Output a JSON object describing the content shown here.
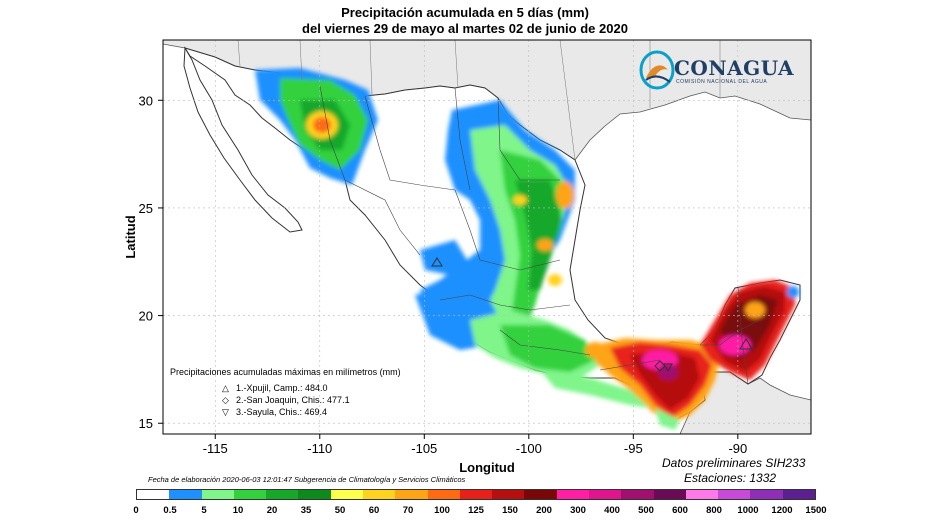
{
  "title": {
    "line1": "Precipitación acumulada en 5 días (mm)",
    "line2": "del viernes 29 de mayo al martes 02 de junio de 2020"
  },
  "logo": {
    "name": "CONAGUA",
    "subtitle": "COMISIÓN NACIONAL DEL AGUA"
  },
  "axes": {
    "xlabel": "Longitud",
    "ylabel": "Latitud",
    "x_ticks": [
      "-115",
      "-110",
      "-105",
      "-100",
      "-95",
      "-90"
    ],
    "y_ticks": [
      "30",
      "25",
      "20",
      "15"
    ],
    "x_range": [
      -117.5,
      -86.5
    ],
    "y_range": [
      14.5,
      32.8
    ]
  },
  "max_legend": {
    "header": "Precipitaciones acumuladas máximas en milímetros (mm)",
    "items": [
      {
        "symbol": "△",
        "text": "1.-Xpujil, Camp.: 484.0"
      },
      {
        "symbol": "◇",
        "text": "2.-San Joaquin, Chis.: 477.1"
      },
      {
        "symbol": "▽",
        "text": "3.-Sayula, Chis.: 469.4"
      }
    ]
  },
  "credit": "Fecha de elaboración 2020-06-03 12:01:47 Subgerencia de Climatología y Servicios Climáticos",
  "footer": {
    "prelim": "Datos preliminares SIH233",
    "stations": "Estaciones:   1332"
  },
  "colorbar": {
    "labels": [
      "0",
      "0.5",
      "5",
      "10",
      "20",
      "35",
      "50",
      "60",
      "70",
      "100",
      "125",
      "150",
      "200",
      "300",
      "400",
      "500",
      "600",
      "800",
      "1000",
      "1200",
      "1500"
    ],
    "colors": [
      "#ffffff",
      "#1e90ff",
      "#7ff58a",
      "#32d13d",
      "#17a82a",
      "#0e8a1c",
      "#ffff4d",
      "#ffd21f",
      "#ffa416",
      "#ff6a12",
      "#e8201a",
      "#b50f0f",
      "#7a0707",
      "#ff1fa5",
      "#e0148c",
      "#a10f6f",
      "#6b0a55",
      "#ff7ae8",
      "#c74ad9",
      "#8f2fb8",
      "#5c1f8f"
    ]
  },
  "chart_data": {
    "type": "map",
    "title": "Precipitación acumulada en 5 días (mm)",
    "xlabel": "Longitud",
    "ylabel": "Latitud",
    "xlim": [
      -117.5,
      -86.5
    ],
    "ylim": [
      14.5,
      32.8
    ],
    "grid": true,
    "max_stations": [
      {
        "rank": 1,
        "name": "Xpujil, Camp.",
        "value": 484.0,
        "lon": -89.4,
        "lat": 18.5
      },
      {
        "rank": 2,
        "name": "San Joaquin, Chis.",
        "value": 477.1,
        "lon": -93.3,
        "lat": 17.4
      },
      {
        "rank": 3,
        "name": "Sayula, Chis.",
        "value": 469.4,
        "lon": -93.2,
        "lat": 17.4
      }
    ]
  }
}
